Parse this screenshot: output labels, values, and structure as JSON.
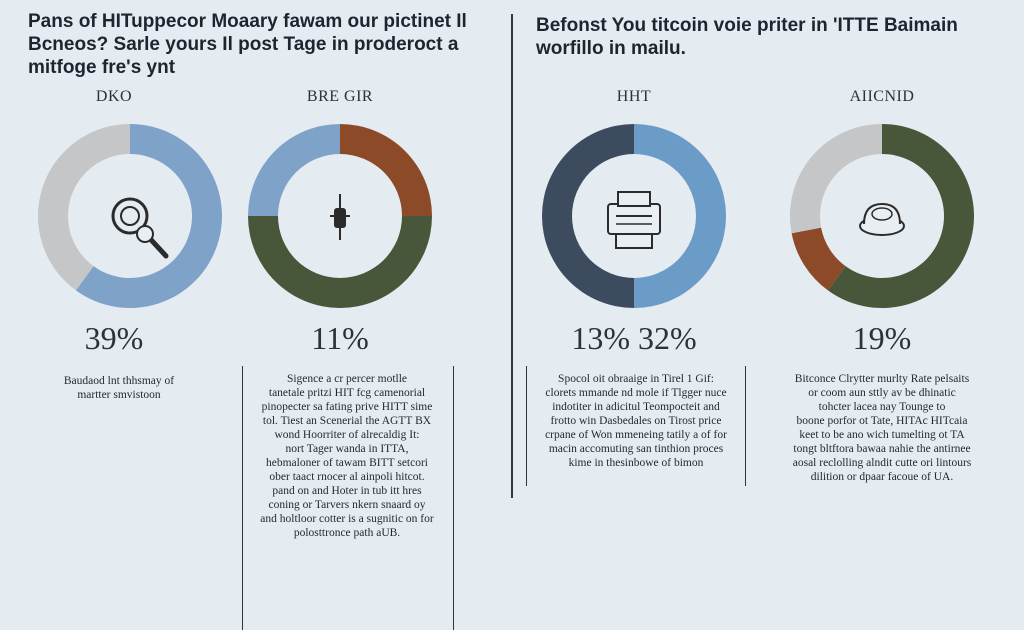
{
  "header": {
    "left_title": "Pans of HITuppecor Moaary fawam our pictinet Il Bcneos? Sarle yours Il post Tage in proderoct a mitfoge fre's ynt",
    "right_title": "Befonst You titcoin voie priter in 'ITTE Baimain worfillo in mailu."
  },
  "chart_data": [
    {
      "type": "pie",
      "title": "DKO",
      "value_label": "39%",
      "slices": [
        {
          "value": 60,
          "color": "#7fa2c9"
        },
        {
          "value": 40,
          "color": "#c4c6c8"
        }
      ],
      "icon": "magnifier-icon",
      "description": [
        "Baudaod lnt thhsmay of",
        "martter smvistoon"
      ]
    },
    {
      "type": "pie",
      "title": "BRE GIR",
      "value_label": "11%",
      "slices": [
        {
          "value": 25,
          "color": "#8c4a28"
        },
        {
          "value": 50,
          "color": "#48573a"
        },
        {
          "value": 25,
          "color": "#7fa2c9"
        }
      ],
      "icon": "ink-pen-icon",
      "description": [
        "Sigence a cr percer motlle",
        "tanetale pritzi HIT fcg camenorial",
        "pinopecter sa fating prive HITT sime",
        "tol. Tiest an Scenerial the AGTT BX",
        "wond Hoorriter of alrecaldig It:",
        "nort Tager wanda in ITTA,",
        "hebmaloner of tawam BITT setcori",
        "ober taact rnocer al ainpoli hitcot.",
        "pand on and Hoter in tub itt hres",
        "coning or Tarvers nkern snaard oy",
        "and holtloor cotter is a sugnitic on for",
        "polosttronce path aUB."
      ]
    },
    {
      "type": "pie",
      "title": "HHT",
      "value_label": "13% 32%",
      "slices": [
        {
          "value": 50,
          "color": "#6b9cc7"
        },
        {
          "value": 50,
          "color": "#3d4b5e"
        }
      ],
      "icon": "printer-icon",
      "description": [
        "Spocol oit obraaige in Tirel 1 Gif:",
        "clorets mmande nd mole if Tlgger nuce",
        "indotiter in adicitul Teompocteit and",
        "frotto win Dasbedales on Tirost price",
        "crpane of Won mmeneing tatily a of for",
        "macin accomuting san tinthion proces",
        "kime in thesinbowe of bimon"
      ]
    },
    {
      "type": "pie",
      "title": "AIICNID",
      "value_label": "19%",
      "slices": [
        {
          "value": 60,
          "color": "#48573a"
        },
        {
          "value": 12,
          "color": "#8c4a28"
        },
        {
          "value": 28,
          "color": "#c4c6c8"
        }
      ],
      "icon": "coin-icon",
      "description": [
        "Bitconce Clrytter murlty Rate pelsaits",
        "or coom aun sttly av be dhinatic",
        "tohcter lacea nay Tounge to",
        "boone porfor ot Tate, HITAc HITcaia",
        "keet to be ano wich tumelting ot TA",
        "tongt bltftora bawaa nahie the antirnee",
        "aosal reclolling alndit cutte ori lintours",
        "dilition or dpaar facoue of UA."
      ]
    }
  ]
}
